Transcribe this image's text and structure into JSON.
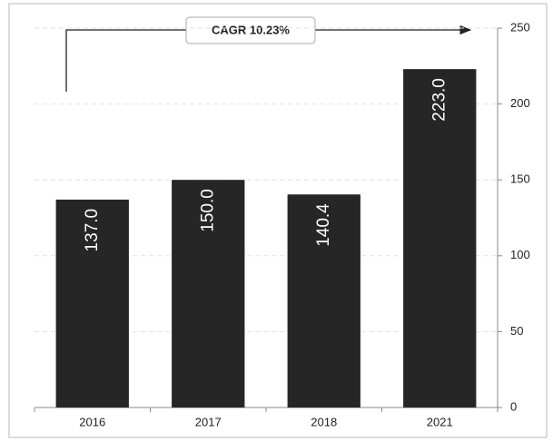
{
  "chart_data": {
    "type": "bar",
    "categories": [
      "2016",
      "2017",
      "2018",
      "2021"
    ],
    "values": [
      137,
      150,
      140.4,
      223
    ],
    "value_labels": [
      "137.0",
      "150.0",
      "140.4",
      "223.0"
    ],
    "color": "#262626",
    "ylim": [
      0,
      250
    ],
    "yticks": [
      0,
      50,
      100,
      150,
      200,
      250
    ],
    "grid": true,
    "annotations": [
      "CAGR 10.23%"
    ]
  }
}
